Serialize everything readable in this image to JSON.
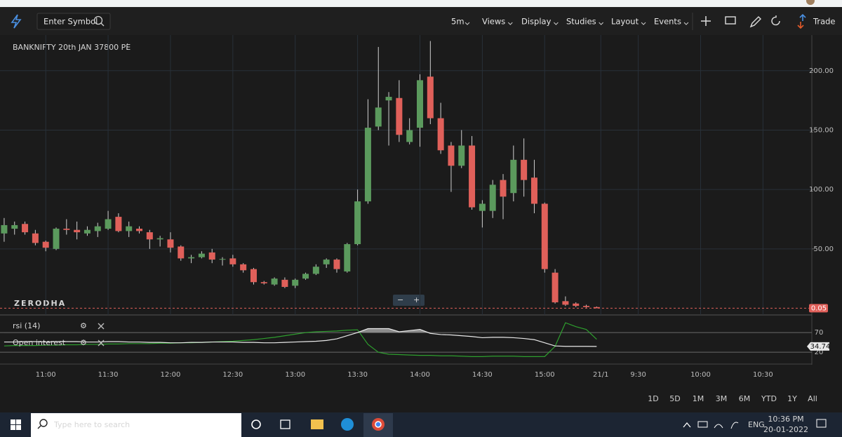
{
  "toolbar": {
    "symbol_placeholder": "Enter Symbol",
    "interval": "5m",
    "menus": [
      "Views",
      "Display",
      "Studies",
      "Layout",
      "Events"
    ],
    "trade": "Trade"
  },
  "chart_data": {
    "type": "candlestick",
    "title": "BANKNIFTY 20th JAN 37800 PE",
    "watermark": "ZERODHA",
    "up_color": "#5b9a5d",
    "down_color": "#e0605a",
    "open": [
      63,
      67,
      71,
      63,
      56,
      50,
      67,
      66,
      63,
      65,
      67,
      77,
      65,
      67,
      64,
      58,
      58,
      52,
      42,
      43,
      47,
      41,
      42,
      37,
      33,
      22,
      20,
      24,
      19,
      25,
      29,
      37,
      41,
      31,
      54,
      90,
      153,
      175,
      177,
      140,
      152,
      195,
      160,
      137,
      120,
      137,
      82,
      82,
      108,
      97,
      125,
      110,
      88,
      30,
      6,
      4,
      2,
      1
    ],
    "high": [
      76,
      73,
      73,
      66,
      57,
      68,
      75,
      73,
      69,
      72,
      82,
      80,
      73,
      69,
      66,
      61,
      64,
      53,
      45,
      48,
      50,
      43,
      45,
      38,
      34,
      23,
      26,
      26,
      25,
      30,
      37,
      42,
      42,
      55,
      100,
      176,
      220,
      182,
      192,
      160,
      197,
      225,
      173,
      140,
      150,
      145,
      91,
      108,
      113,
      137,
      143,
      125,
      89,
      33,
      10,
      5,
      3,
      1.5
    ],
    "low": [
      56,
      62,
      62,
      53,
      48,
      49,
      62,
      58,
      61,
      60,
      66,
      64,
      60,
      63,
      50,
      52,
      47,
      40,
      38,
      42,
      38,
      36,
      35,
      30,
      20,
      20,
      19,
      17,
      17,
      24,
      28,
      34,
      30,
      30,
      53,
      88,
      150,
      137,
      140,
      138,
      136,
      155,
      130,
      98,
      118,
      83,
      68,
      76,
      75,
      90,
      94,
      80,
      30,
      4,
      2,
      1,
      0.5,
      0.05
    ],
    "close": [
      70,
      70,
      64,
      55,
      51,
      67,
      66,
      64,
      66,
      69,
      75,
      65,
      69,
      65,
      58,
      59,
      51,
      42,
      43,
      46,
      41,
      41.5,
      37,
      32,
      22,
      21,
      25,
      18,
      24,
      29,
      35,
      41,
      33,
      54,
      90,
      152,
      169,
      178,
      146,
      150,
      192,
      160,
      133,
      120,
      137,
      85,
      88,
      104,
      94,
      125,
      108,
      88,
      33,
      5,
      3,
      2,
      1,
      0.05
    ],
    "xlim": [
      -0.4,
      77.7
    ],
    "xticks": [
      {
        "value": 4,
        "label": "11:00"
      },
      {
        "value": 10,
        "label": "11:30"
      },
      {
        "value": 16,
        "label": "12:00"
      },
      {
        "value": 22,
        "label": "12:30"
      },
      {
        "value": 28,
        "label": "13:00"
      },
      {
        "value": 34,
        "label": "13:30"
      },
      {
        "value": 40,
        "label": "14:00"
      },
      {
        "value": 46,
        "label": "14:30"
      },
      {
        "value": 52,
        "label": "15:00"
      },
      {
        "value": 57.4,
        "label": "21/1"
      },
      {
        "value": 61,
        "label": "9:30"
      },
      {
        "value": 67,
        "label": "10:00"
      },
      {
        "value": 73,
        "label": "10:30"
      }
    ],
    "ylim": [
      0,
      230
    ],
    "yticks": [
      {
        "value": 50,
        "label": "50.00"
      },
      {
        "value": 100,
        "label": "100.00"
      },
      {
        "value": 150,
        "label": "150.00"
      },
      {
        "value": 200,
        "label": "200.00"
      }
    ],
    "current_price": {
      "value": 0.05,
      "label": "0.05"
    },
    "grid": true
  },
  "indicator": {
    "type": "line",
    "ylim": [
      -10,
      113
    ],
    "yticks": [
      20,
      70
    ],
    "series": [
      {
        "name": "rsi (14)",
        "color": "#2e9e2e",
        "values": [
          36,
          37,
          37,
          37,
          38,
          38,
          39,
          39,
          40,
          40,
          41,
          41,
          42,
          42,
          42,
          43,
          43,
          44,
          44,
          45,
          46,
          47,
          48,
          50,
          52,
          55,
          58,
          62,
          66,
          70,
          72,
          73,
          74,
          76,
          77,
          40,
          20,
          15,
          14,
          13,
          12,
          12,
          11,
          11,
          10,
          9,
          9,
          10,
          10,
          10,
          9,
          9,
          9,
          35,
          95,
          85,
          78,
          53
        ]
      },
      {
        "name": "Open interest",
        "color": "#e8e8e8",
        "values": [
          46,
          46,
          47,
          47,
          46,
          47,
          47,
          47,
          46,
          46,
          47,
          47,
          46,
          46,
          45,
          45,
          44,
          44,
          45,
          45,
          46,
          46,
          46,
          45,
          45,
          44,
          44,
          45,
          46,
          47,
          48,
          50,
          54,
          62,
          70,
          80,
          80,
          80,
          72,
          75,
          78,
          68,
          65,
          64,
          62,
          60,
          57,
          58,
          58,
          57,
          55,
          52,
          44,
          36,
          35,
          35,
          35,
          34.74
        ]
      }
    ],
    "last_value": {
      "value": 34.74,
      "label": "34.74"
    }
  },
  "range_buttons": [
    "1D",
    "5D",
    "1M",
    "3M",
    "6M",
    "YTD",
    "1Y",
    "All"
  ],
  "taskbar": {
    "search": "Type here to search",
    "language": "ENG",
    "time": "10:36 PM",
    "date": "20-01-2022"
  }
}
